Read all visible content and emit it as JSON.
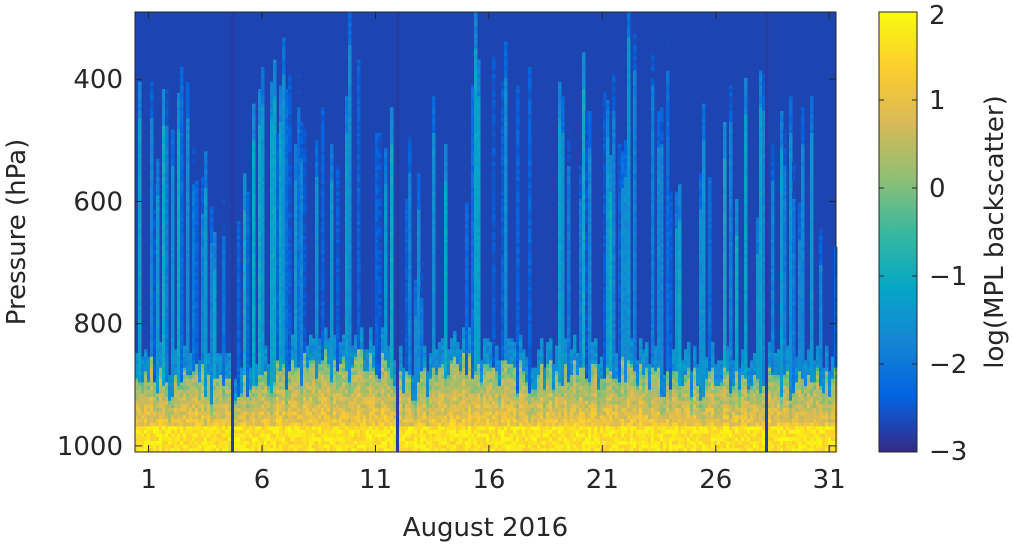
{
  "chart_data": {
    "type": "heatmap",
    "title": "",
    "xlabel": "August 2016",
    "ylabel": "Pressure (hPa)",
    "colorbar_label": "log(MPL backscatter)",
    "xlim": [
      0.4,
      31.3
    ],
    "ylim": [
      290,
      1010
    ],
    "y_reversed": true,
    "grid": false,
    "x_ticks": [
      1,
      6,
      11,
      16,
      21,
      26,
      31
    ],
    "x_tick_labels": [
      "1",
      "6",
      "11",
      "16",
      "21",
      "26",
      "31"
    ],
    "y_ticks": [
      400,
      600,
      800,
      1000
    ],
    "y_tick_labels": [
      "400",
      "600",
      "800",
      "1000"
    ],
    "colorbar": {
      "range": [
        -3,
        2
      ],
      "ticks": [
        2,
        1,
        0,
        -1,
        -2,
        -3
      ],
      "tick_labels": [
        "2",
        "1",
        "0",
        "−1",
        "−2",
        "−3"
      ],
      "colormap": "parula",
      "colors": [
        "#352a87",
        "#0363e1",
        "#1485d4",
        "#06a7c6",
        "#38b99e",
        "#92bf73",
        "#d9ba56",
        "#fcce2e",
        "#f9fb0e"
      ]
    },
    "layers": {
      "boundary_layer_top_hPa_range": [
        830,
        930
      ],
      "boundary_layer_log_backscatter_range": [
        0.0,
        1.8
      ],
      "surface_log_backscatter_range": [
        1.3,
        2.0
      ],
      "clear_upper_log_backscatter": -2.7,
      "column_events_log_backscatter_range": [
        -2.5,
        -1.0
      ]
    },
    "gaps": [
      4.6,
      11.9,
      28.2
    ],
    "profiles": [
      {
        "day": 1.0,
        "bl_top": 875,
        "column_top": 420
      },
      {
        "day": 2.0,
        "bl_top": 900,
        "column_top": 380
      },
      {
        "day": 3.0,
        "bl_top": 880,
        "column_top": 360
      },
      {
        "day": 4.0,
        "bl_top": 910,
        "column_top": 520
      },
      {
        "day": 5.0,
        "bl_top": 900,
        "column_top": 500
      },
      {
        "day": 6.0,
        "bl_top": 885,
        "column_top": 400
      },
      {
        "day": 7.0,
        "bl_top": 880,
        "column_top": 380
      },
      {
        "day": 8.0,
        "bl_top": 875,
        "column_top": 420
      },
      {
        "day": 9.0,
        "bl_top": 870,
        "column_top": 360
      },
      {
        "day": 10.0,
        "bl_top": 860,
        "column_top": 340
      },
      {
        "day": 11.0,
        "bl_top": 855,
        "column_top": 330
      },
      {
        "day": 12.0,
        "bl_top": 890,
        "column_top": 500
      },
      {
        "day": 13.0,
        "bl_top": 900,
        "column_top": 600
      },
      {
        "day": 14.0,
        "bl_top": 880,
        "column_top": 380
      },
      {
        "day": 15.0,
        "bl_top": 860,
        "column_top": 360
      },
      {
        "day": 16.0,
        "bl_top": 870,
        "column_top": 370
      },
      {
        "day": 17.0,
        "bl_top": 880,
        "column_top": 380
      },
      {
        "day": 18.0,
        "bl_top": 890,
        "column_top": 400
      },
      {
        "day": 19.0,
        "bl_top": 880,
        "column_top": 380
      },
      {
        "day": 20.0,
        "bl_top": 885,
        "column_top": 420
      },
      {
        "day": 21.0,
        "bl_top": 880,
        "column_top": 360
      },
      {
        "day": 22.0,
        "bl_top": 870,
        "column_top": 340
      },
      {
        "day": 23.0,
        "bl_top": 880,
        "column_top": 330
      },
      {
        "day": 24.0,
        "bl_top": 900,
        "column_top": 420
      },
      {
        "day": 25.0,
        "bl_top": 895,
        "column_top": 380
      },
      {
        "day": 26.0,
        "bl_top": 890,
        "column_top": 400
      },
      {
        "day": 27.0,
        "bl_top": 880,
        "column_top": 420
      },
      {
        "day": 28.0,
        "bl_top": 890,
        "column_top": 460
      },
      {
        "day": 29.0,
        "bl_top": 900,
        "column_top": 500
      },
      {
        "day": 30.0,
        "bl_top": 880,
        "column_top": 480
      },
      {
        "day": 31.0,
        "bl_top": 885,
        "column_top": 520
      }
    ]
  }
}
